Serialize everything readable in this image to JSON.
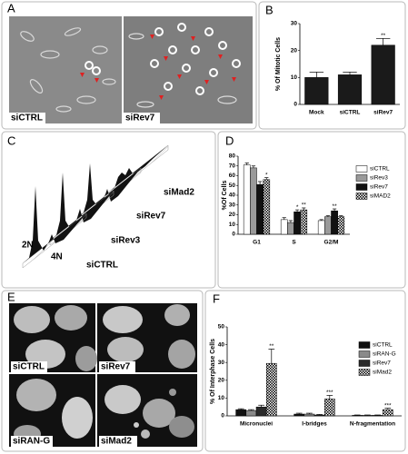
{
  "letters": [
    "A",
    "B",
    "C",
    "D",
    "E",
    "F"
  ],
  "panel_a": {
    "labels": [
      "siCTRL",
      "siRev7"
    ]
  },
  "panel_c": {
    "labels": [
      "siMad2",
      "siRev7",
      "siRev3",
      "siCTRL",
      "2N",
      "4N"
    ]
  },
  "panel_e": {
    "labels": [
      "siCTRL",
      "siRev7",
      "siRAN-G",
      "siMad2"
    ]
  },
  "chart_data": [
    {
      "type": "bar",
      "y_label": "% Of Mitotic Cells",
      "categories": [
        "Mock",
        "siCTRL",
        "siRev7"
      ],
      "series": [
        {
          "color": "#1a1a1a",
          "values": [
            10,
            11,
            22
          ],
          "errors": [
            2,
            1,
            2.5
          ],
          "annotations": [
            null,
            null,
            "**"
          ]
        }
      ],
      "ylim": [
        0,
        30
      ],
      "yticks": [
        0,
        10,
        20,
        30
      ]
    },
    {
      "type": "bar",
      "y_label": "%Of Cells",
      "categories": [
        "G1",
        "S",
        "G2/M"
      ],
      "series": [
        {
          "name": "siCTRL",
          "color": "#ffffff",
          "values": [
            71,
            15,
            14
          ],
          "errors": [
            2,
            2,
            1
          ],
          "annotations": [
            null,
            null,
            null
          ]
        },
        {
          "name": "siRev3",
          "color": "#9a9a9a",
          "values": [
            68,
            12,
            18
          ],
          "errors": [
            2,
            2,
            1
          ],
          "annotations": [
            null,
            null,
            null
          ]
        },
        {
          "name": "siRev7",
          "color": "#111111",
          "values": [
            51,
            23,
            24
          ],
          "errors": [
            3,
            2,
            2
          ],
          "annotations": [
            null,
            "*",
            "**"
          ]
        },
        {
          "name": "siMAD2",
          "color": "#ffffff",
          "pattern": "checker",
          "values": [
            56,
            25,
            18
          ],
          "errors": [
            2,
            2,
            1
          ],
          "annotations": [
            "*",
            "**",
            null
          ]
        }
      ],
      "ylim": [
        0,
        80
      ],
      "yticks": [
        0,
        10,
        20,
        30,
        40,
        50,
        60,
        70,
        80
      ]
    },
    {
      "type": "bar",
      "y_label": "% Of Interphase Cells",
      "categories": [
        "Micronuclei",
        "I-bridges",
        "N-fragmentation"
      ],
      "series": [
        {
          "name": "siCTRL",
          "color": "#111111",
          "values": [
            3.5,
            1,
            0.3
          ],
          "errors": [
            0.5,
            0.5,
            0.2
          ],
          "annotations": [
            null,
            null,
            null
          ]
        },
        {
          "name": "siRAN-G",
          "color": "#8a8a8a",
          "values": [
            3,
            1,
            0.3
          ],
          "errors": [
            0.5,
            0.5,
            0.2
          ],
          "annotations": [
            null,
            null,
            null
          ]
        },
        {
          "name": "siRev7",
          "color": "#2a2a2a",
          "values": [
            5,
            0.5,
            0.3
          ],
          "errors": [
            1,
            0.3,
            0.2
          ],
          "annotations": [
            null,
            null,
            null
          ]
        },
        {
          "name": "siMad2",
          "color": "#ffffff",
          "pattern": "checker",
          "values": [
            29.5,
            9.5,
            3.5
          ],
          "errors": [
            8,
            2,
            0.8
          ],
          "annotations": [
            "**",
            "***",
            "***"
          ]
        }
      ],
      "ylim": [
        0,
        50
      ],
      "yticks": [
        0,
        10,
        20,
        30,
        40,
        50
      ]
    }
  ]
}
